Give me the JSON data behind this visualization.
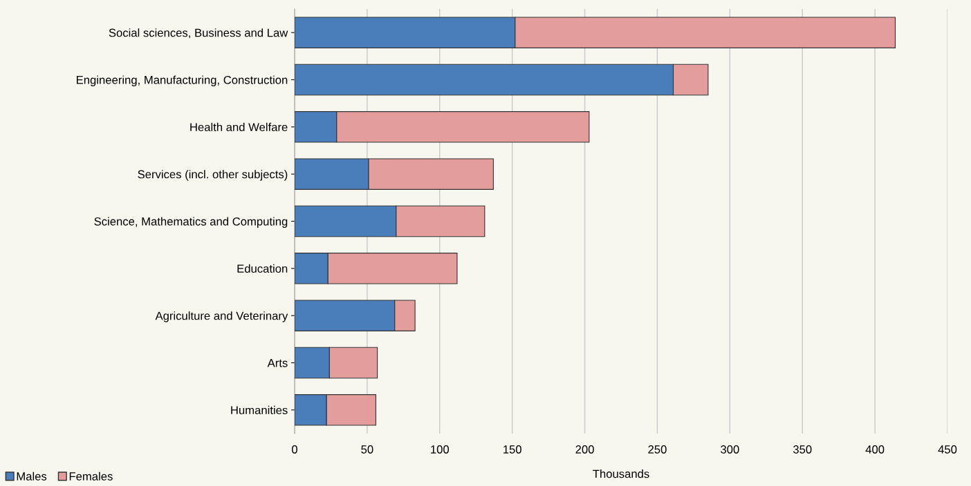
{
  "chart_data": {
    "type": "bar",
    "orientation": "horizontal",
    "stacked": true,
    "categories": [
      "Social sciences, Business and Law",
      "Engineering, Manufacturing, Construction",
      "Health and Welfare",
      "Services (incl. other subjects)",
      "Science, Mathematics and Computing",
      "Education",
      "Agriculture and Veterinary",
      "Arts",
      "Humanities"
    ],
    "series": [
      {
        "name": "Males",
        "color": "#4a7ebb",
        "values": [
          152,
          261,
          29,
          51,
          70,
          23,
          69,
          24,
          22
        ]
      },
      {
        "name": "Females",
        "color": "#e39d9d",
        "values": [
          262,
          24,
          174,
          86,
          61,
          89,
          14,
          33,
          34
        ]
      }
    ],
    "xlim": [
      0,
      450
    ],
    "xticks": [
      0,
      50,
      100,
      150,
      200,
      250,
      300,
      350,
      400,
      450
    ],
    "xlabel": "Thousands",
    "grid": "x",
    "legend": "bottom left"
  }
}
